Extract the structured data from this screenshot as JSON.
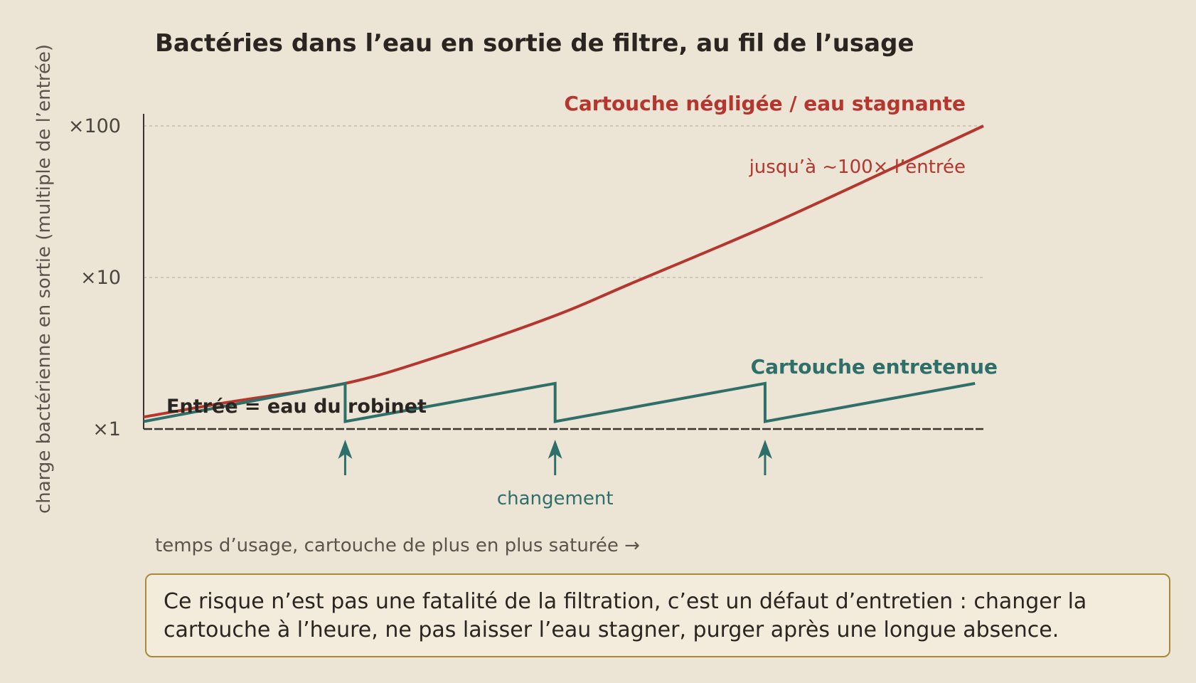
{
  "chart_data": {
    "type": "line",
    "title": "Bactéries dans l’eau en sortie de filtre, au fil de l’usage",
    "ylabel": "charge bactérienne en sortie (multiple de l’entrée)",
    "xlabel": "temps d’usage, cartouche de plus en plus saturée →",
    "yscale": "log",
    "ylim": [
      1,
      100
    ],
    "xlim": [
      0,
      1
    ],
    "yticks": [
      {
        "value": 1,
        "label": "×1"
      },
      {
        "value": 10,
        "label": "×10"
      },
      {
        "value": 100,
        "label": "×100"
      }
    ],
    "grid": true,
    "baseline": {
      "value": 1,
      "label": "Entrée = eau du robinet"
    },
    "series": [
      {
        "name": "Cartouche négligée / eau stagnante",
        "color": "#b5362f",
        "annotation": "jusqu’à ~100× l’entrée",
        "x": [
          0,
          0.1,
          0.24,
          0.35,
          0.49,
          0.58,
          0.74,
          0.89,
          1.0
        ],
        "y": [
          1.2,
          1.5,
          2.0,
          3.0,
          5.6,
          9.1,
          21.6,
          52,
          100
        ]
      },
      {
        "name": "Cartouche entretenue",
        "color": "#2f6f69",
        "x": [
          0,
          0.24,
          0.24,
          0.49,
          0.49,
          0.74,
          0.74,
          0.99
        ],
        "y": [
          1.12,
          2.0,
          1.12,
          2.0,
          1.12,
          2.0,
          1.12,
          2.0
        ]
      }
    ],
    "events": {
      "label": "changement",
      "color": "#2f6f69",
      "x": [
        0.24,
        0.49,
        0.74
      ]
    }
  },
  "note": "Ce risque n’est pas une fatalité de la filtration, c’est un défaut d’entretien : changer la cartouche à l’heure, ne pas laisser l’eau stagner, purger après une longue absence."
}
